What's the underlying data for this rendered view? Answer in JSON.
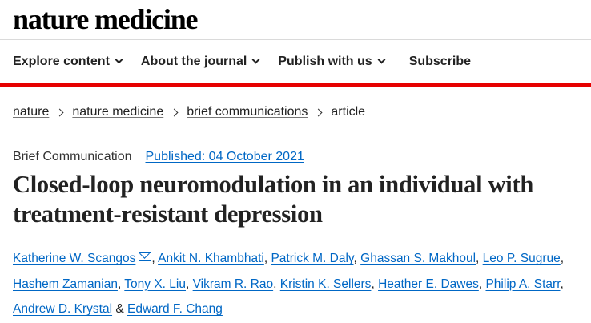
{
  "logo": {
    "text": "nature medicine"
  },
  "nav": {
    "items": [
      {
        "label": "Explore content"
      },
      {
        "label": "About the journal"
      },
      {
        "label": "Publish with us"
      }
    ],
    "subscribe": "Subscribe"
  },
  "breadcrumb": {
    "items": [
      "nature",
      "nature medicine",
      "brief communications"
    ],
    "current": "article"
  },
  "article": {
    "type": "Brief Communication",
    "published": "Published: 04 October 2021",
    "title": "Closed-loop neuromodulation in an individual with treatment-resistant depression",
    "authors": [
      "Katherine W. Scangos",
      "Ankit N. Khambhati",
      "Patrick M. Daly",
      "Ghassan S. Makhoul",
      "Leo P. Sugrue",
      "Hashem Zamanian",
      "Tony X. Liu",
      "Vikram R. Rao",
      "Kristin K. Sellers",
      "Heather E. Dawes",
      "Philip A. Starr",
      "Andrew D. Krystal",
      "Edward F. Chang"
    ],
    "separator": ",",
    "conjunction": "&"
  },
  "colors": {
    "accent_red": "#e60000",
    "link_blue": "#0067c5",
    "text": "#222222"
  },
  "icons": [
    "chevron-down-icon",
    "chevron-right-icon",
    "mail-icon"
  ]
}
